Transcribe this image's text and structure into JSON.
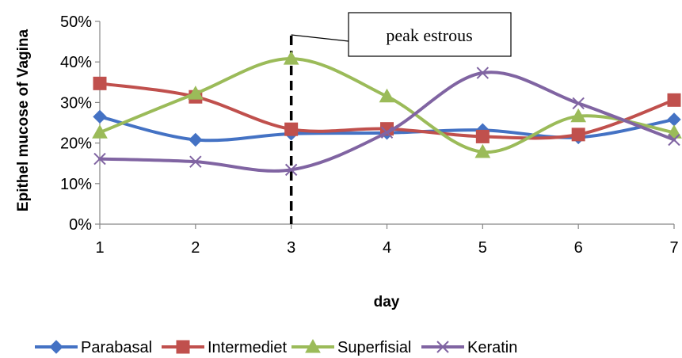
{
  "chart_data": {
    "type": "line",
    "title": "",
    "xlabel": "day",
    "ylabel": "Epithel mucose of Vagina",
    "x": [
      1,
      2,
      3,
      4,
      5,
      6,
      7
    ],
    "x_tick_labels": [
      "1",
      "2",
      "3",
      "4",
      "5",
      "6",
      "7"
    ],
    "ylim": [
      0,
      50
    ],
    "y_tick_labels": [
      "0%",
      "10%",
      "20%",
      "30%",
      "40%",
      "50%"
    ],
    "grid": false,
    "legend_position": "bottom",
    "series": [
      {
        "name": "Parabasal",
        "color": "#4472C4",
        "marker": "diamond",
        "values": [
          26.5,
          20.8,
          22.3,
          22.5,
          23.2,
          21.4,
          25.8
        ]
      },
      {
        "name": "Intermediet",
        "color": "#C0504D",
        "marker": "square",
        "values": [
          34.7,
          31.4,
          23.4,
          23.5,
          21.6,
          22.1,
          30.6
        ]
      },
      {
        "name": "Superfisial",
        "color": "#9BBB59",
        "marker": "triangle",
        "values": [
          22.6,
          32.2,
          40.8,
          31.5,
          17.8,
          26.6,
          22.6
        ]
      },
      {
        "name": "Keratin",
        "color": "#8064A2",
        "marker": "x",
        "values": [
          16.1,
          15.4,
          13.4,
          22.6,
          37.3,
          29.8,
          20.8
        ]
      }
    ],
    "annotations": [
      {
        "text": "peak estrous",
        "x": 3
      }
    ]
  }
}
